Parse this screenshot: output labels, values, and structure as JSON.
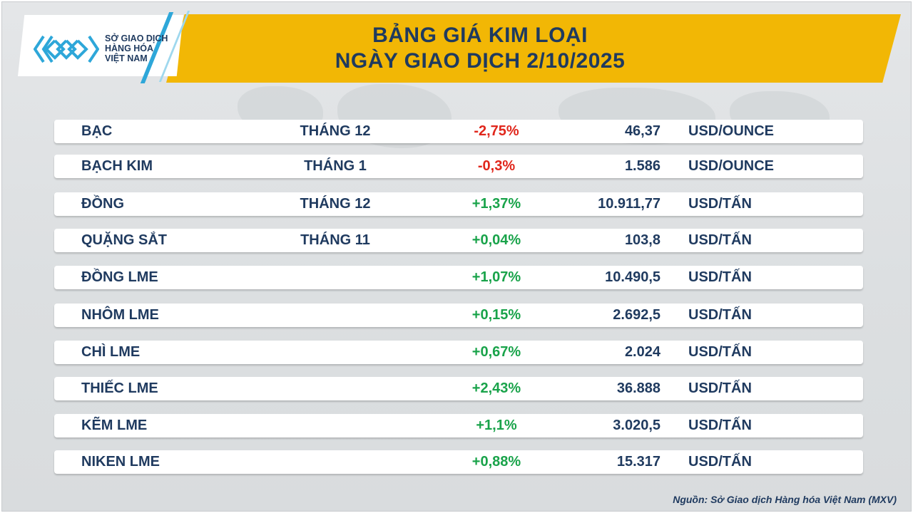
{
  "header": {
    "title_line1": "BẢNG GIÁ KIM LOẠI",
    "title_line2": "NGÀY GIAO DỊCH 2/10/2025"
  },
  "logo": {
    "line1": "SỞ GIAO DỊCH",
    "line2": "HÀNG HÓA",
    "line3": "VIỆT NAM",
    "icon": "mxv-logo-icon",
    "accent": "#2ea7d9"
  },
  "colors": {
    "banner": "#f2b705",
    "text": "#1f3a5f",
    "negative": "#e0261b",
    "positive": "#19a34a"
  },
  "rows": [
    {
      "name": "BẠC",
      "month": "THÁNG 12",
      "change": "-2,75%",
      "price": "46,37",
      "unit": "USD/OUNCE"
    },
    {
      "name": "BẠCH KIM",
      "month": "THÁNG 1",
      "change": "-0,3%",
      "price": "1.586",
      "unit": "USD/OUNCE"
    },
    {
      "name": "ĐỒNG",
      "month": "THÁNG 12",
      "change": "+1,37%",
      "price": "10.911,77",
      "unit": "USD/TẤN"
    },
    {
      "name": "QUẶNG SẮT",
      "month": "THÁNG 11",
      "change": "+0,04%",
      "price": "103,8",
      "unit": "USD/TẤN"
    },
    {
      "name": "ĐỒNG LME",
      "month": "",
      "change": "+1,07%",
      "price": "10.490,5",
      "unit": "USD/TẤN"
    },
    {
      "name": "NHÔM LME",
      "month": "",
      "change": "+0,15%",
      "price": "2.692,5",
      "unit": "USD/TẤN"
    },
    {
      "name": "CHÌ LME",
      "month": "",
      "change": "+0,67%",
      "price": "2.024",
      "unit": "USD/TẤN"
    },
    {
      "name": "THIẾC LME",
      "month": "",
      "change": "+2,43%",
      "price": "36.888",
      "unit": "USD/TẤN"
    },
    {
      "name": "KẼM LME",
      "month": "",
      "change": "+1,1%",
      "price": "3.020,5",
      "unit": "USD/TẤN"
    },
    {
      "name": "NIKEN LME",
      "month": "",
      "change": "+0,88%",
      "price": "15.317",
      "unit": "USD/TẤN"
    }
  ],
  "footer": {
    "source": "Nguồn: Sở Giao dịch Hàng hóa Việt Nam (MXV)"
  }
}
